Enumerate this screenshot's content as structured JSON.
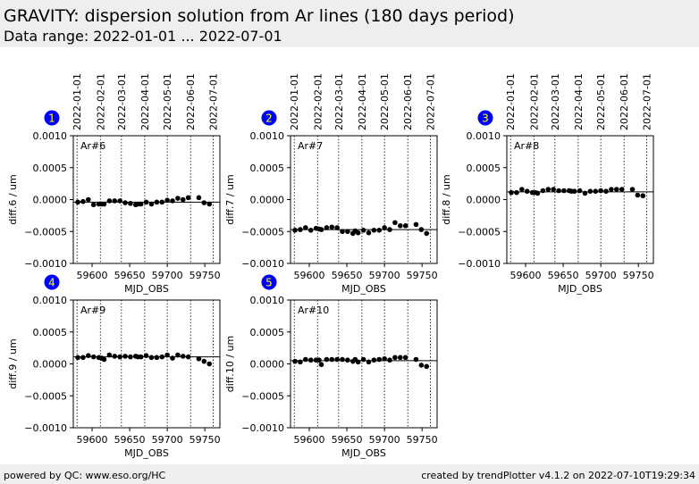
{
  "header": {
    "title": "GRAVITY: dispersion solution from Ar lines (180 days period)",
    "subtitle": "Data range: 2022-01-01 ... 2022-07-01"
  },
  "footer": {
    "left": "powered by QC: www.eso.org/HC",
    "right": "created by trendPlotter v4.1.2 on 2022-07-10T19:29:34"
  },
  "colors": {
    "badge": "#0000ff",
    "badge_text": "#ffff00",
    "point": "#000000"
  },
  "chart_data": {
    "type": "scatter",
    "xlabel": "MJD_OBS",
    "xlim": [
      59575,
      59770
    ],
    "ylim": [
      -0.001,
      0.001
    ],
    "xticks": [
      59600,
      59650,
      59700,
      59750
    ],
    "xtick_labels": [
      "59600",
      "59650",
      "59700",
      "59750"
    ],
    "yticks": [
      -0.001,
      -0.0005,
      0,
      0.0005,
      0.001
    ],
    "ytick_labels": [
      "−0.0010",
      "−0.0005",
      "0.0000",
      "0.0005",
      "0.0010"
    ],
    "date_lines": [
      59580,
      59611,
      59639,
      59670,
      59700,
      59731,
      59761
    ],
    "date_labels": [
      "2022-01-01",
      "2022-02-01",
      "2022-03-01",
      "2022-04-01",
      "2022-05-01",
      "2022-06-01",
      "2022-07-01"
    ],
    "x": [
      59581,
      59588,
      59595,
      59602,
      59609,
      59613,
      59616,
      59623,
      59630,
      59637,
      59644,
      59651,
      59658,
      59661,
      59665,
      59672,
      59679,
      59686,
      59693,
      59700,
      59707,
      59714,
      59721,
      59728,
      59742,
      59749,
      59756
    ],
    "panels": [
      {
        "badge": "1",
        "label": "Ar#6",
        "ylabel": "diff.6 / um",
        "ref": -4e-05,
        "y": [
          -4e-05,
          -3e-05,
          0,
          -8e-05,
          -7e-05,
          -7e-05,
          -7e-05,
          -2e-05,
          -2e-05,
          -2e-05,
          -5e-05,
          -6e-05,
          -8e-05,
          -7e-05,
          -7e-05,
          -4e-05,
          -7e-05,
          -4e-05,
          -4e-05,
          -1e-05,
          -2e-05,
          2e-05,
          0,
          3e-05,
          3e-05,
          -5e-05,
          -7e-05
        ]
      },
      {
        "badge": "2",
        "label": "Ar#7",
        "ylabel": "diff.7 / um",
        "ref": -0.00047,
        "y": [
          -0.00048,
          -0.00047,
          -0.00044,
          -0.00048,
          -0.00045,
          -0.00046,
          -0.00047,
          -0.00044,
          -0.00043,
          -0.00044,
          -0.0005,
          -0.0005,
          -0.00053,
          -0.00049,
          -0.00052,
          -0.00048,
          -0.00052,
          -0.00048,
          -0.00048,
          -0.00044,
          -0.00047,
          -0.00036,
          -0.00041,
          -0.00041,
          -0.00039,
          -0.00047,
          -0.00053
        ]
      },
      {
        "badge": "3",
        "label": "Ar#8",
        "ylabel": "diff.8 / um",
        "ref": 0.00012,
        "y": [
          0.00011,
          0.00011,
          0.00016,
          0.00013,
          0.00011,
          0.00011,
          0.0001,
          0.00014,
          0.00016,
          0.00016,
          0.00014,
          0.00014,
          0.00014,
          0.00013,
          0.00013,
          0.00014,
          0.0001,
          0.00013,
          0.00013,
          0.00014,
          0.00013,
          0.00016,
          0.00016,
          0.00016,
          0.00016,
          7e-05,
          6e-05
        ]
      },
      {
        "badge": "4",
        "label": "Ar#9",
        "ylabel": "diff.9 / um",
        "ref": 0.00011,
        "y": [
          0.0001,
          0.0001,
          0.00013,
          0.00011,
          0.0001,
          9e-05,
          7e-05,
          0.00014,
          0.00012,
          0.00011,
          0.00012,
          0.00011,
          0.00012,
          0.00011,
          0.00011,
          0.00013,
          0.0001,
          0.0001,
          0.00011,
          0.00014,
          9e-05,
          0.00014,
          0.00012,
          0.00011,
          8e-05,
          4e-05,
          0
        ]
      },
      {
        "badge": "5",
        "label": "Ar#10",
        "ylabel": "diff.10 / um",
        "ref": 5e-05,
        "y": [
          4e-05,
          3e-05,
          7e-05,
          6e-05,
          6e-05,
          6e-05,
          -1e-05,
          7e-05,
          7e-05,
          7e-05,
          7e-05,
          6e-05,
          4e-05,
          7e-05,
          3e-05,
          7e-05,
          3e-05,
          6e-05,
          7e-05,
          8e-05,
          6e-05,
          0.0001,
          0.0001,
          0.0001,
          7e-05,
          -2e-05,
          -4e-05
        ]
      }
    ]
  }
}
